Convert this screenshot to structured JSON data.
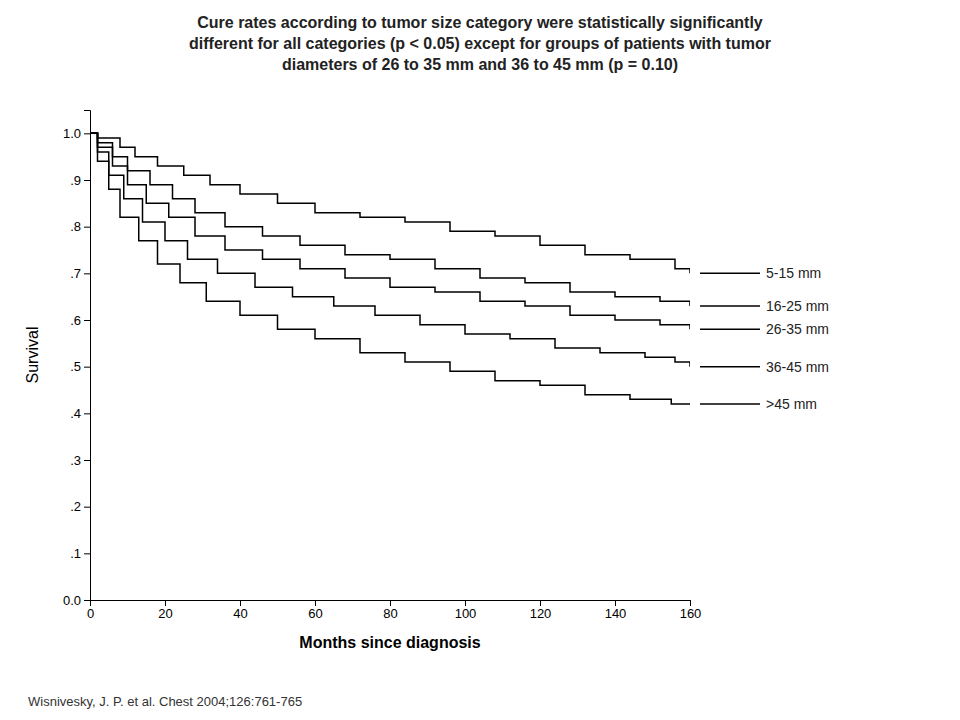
{
  "chart_data": {
    "type": "step",
    "title": "Cure rates according to tumor size category were statistically significantly\ndifferent for all categories (p < 0.05) except for groups of patients with tumor\ndiameters of 26 to 35 mm and 36 to 45 mm (p = 0.10)",
    "xlabel": "Months since diagnosis",
    "ylabel": "Survival",
    "annotations": [
      "Wisnivesky, J. P. et al. Chest 2004;126:761-765"
    ],
    "xlim": [
      0,
      160
    ],
    "ylim": [
      0.0,
      1.05
    ],
    "xticks": [
      0,
      20,
      40,
      60,
      80,
      100,
      120,
      140,
      160
    ],
    "yticks": [
      {
        "value": 0.0,
        "label": "0.0"
      },
      {
        "value": 0.1,
        "label": ".1"
      },
      {
        "value": 0.2,
        "label": ".2"
      },
      {
        "value": 0.3,
        "label": ".3"
      },
      {
        "value": 0.4,
        "label": ".4"
      },
      {
        "value": 0.5,
        "label": ".5"
      },
      {
        "value": 0.6,
        "label": ".6"
      },
      {
        "value": 0.7,
        "label": ".7"
      },
      {
        "value": 0.8,
        "label": ".8"
      },
      {
        "value": 0.9,
        "label": ".9"
      },
      {
        "value": 1.0,
        "label": "1.0"
      }
    ],
    "grid": false,
    "legend": "right",
    "series": [
      {
        "name": "5-15 mm",
        "color": "#000000",
        "x": [
          0,
          2,
          8,
          12,
          18,
          25,
          32,
          40,
          50,
          60,
          72,
          84,
          96,
          108,
          120,
          132,
          144,
          156,
          160
        ],
        "values": [
          1.0,
          0.99,
          0.97,
          0.95,
          0.93,
          0.91,
          0.89,
          0.87,
          0.85,
          0.83,
          0.82,
          0.81,
          0.79,
          0.78,
          0.76,
          0.74,
          0.73,
          0.71,
          0.7
        ]
      },
      {
        "name": "16-25 mm",
        "color": "#000000",
        "x": [
          0,
          2,
          6,
          10,
          16,
          22,
          28,
          36,
          46,
          56,
          68,
          80,
          92,
          104,
          116,
          128,
          140,
          152,
          160
        ],
        "values": [
          1.0,
          0.98,
          0.95,
          0.92,
          0.89,
          0.86,
          0.83,
          0.8,
          0.78,
          0.76,
          0.74,
          0.73,
          0.71,
          0.69,
          0.68,
          0.66,
          0.65,
          0.64,
          0.63
        ]
      },
      {
        "name": "26-35 mm",
        "color": "#000000",
        "x": [
          0,
          2,
          6,
          10,
          15,
          21,
          28,
          36,
          46,
          56,
          68,
          80,
          92,
          104,
          116,
          128,
          140,
          152,
          160
        ],
        "values": [
          1.0,
          0.97,
          0.93,
          0.89,
          0.85,
          0.82,
          0.78,
          0.75,
          0.73,
          0.71,
          0.69,
          0.67,
          0.66,
          0.64,
          0.63,
          0.61,
          0.6,
          0.59,
          0.58
        ]
      },
      {
        "name": "36-45 mm",
        "color": "#000000",
        "x": [
          0,
          2,
          5,
          9,
          14,
          20,
          26,
          34,
          44,
          54,
          65,
          76,
          88,
          100,
          112,
          124,
          136,
          148,
          156,
          160
        ],
        "values": [
          1.0,
          0.96,
          0.91,
          0.86,
          0.81,
          0.77,
          0.73,
          0.7,
          0.67,
          0.65,
          0.63,
          0.61,
          0.59,
          0.57,
          0.56,
          0.54,
          0.53,
          0.52,
          0.51,
          0.5
        ]
      },
      {
        "name": ">45 mm",
        "color": "#000000",
        "x": [
          0,
          2,
          5,
          8,
          13,
          18,
          24,
          31,
          40,
          50,
          60,
          72,
          84,
          96,
          108,
          120,
          132,
          144,
          155,
          160
        ],
        "values": [
          1.0,
          0.94,
          0.88,
          0.82,
          0.77,
          0.72,
          0.68,
          0.64,
          0.61,
          0.58,
          0.56,
          0.53,
          0.51,
          0.49,
          0.47,
          0.46,
          0.44,
          0.43,
          0.42,
          0.42
        ]
      }
    ]
  }
}
